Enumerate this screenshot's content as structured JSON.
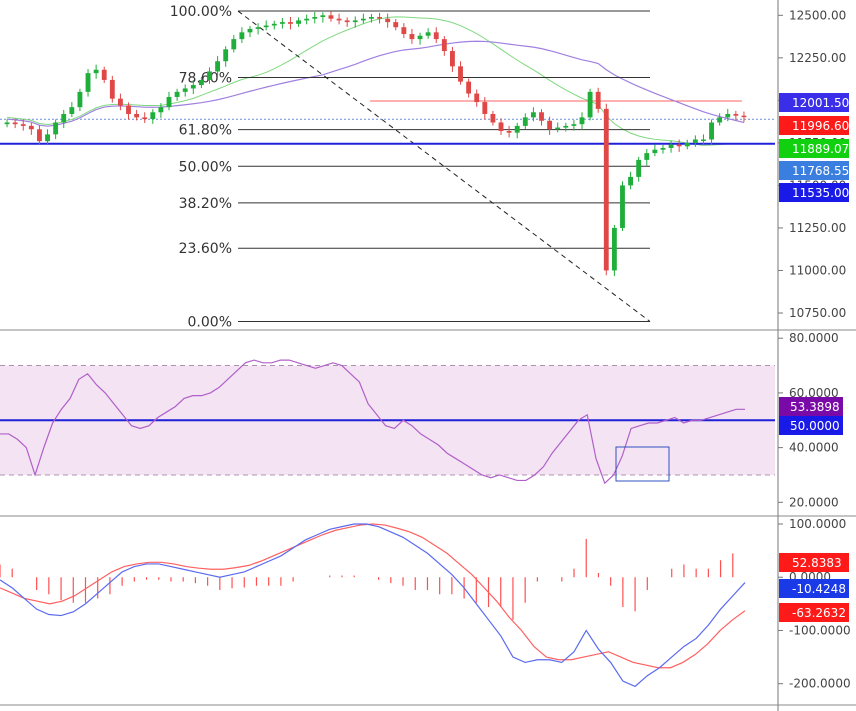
{
  "chart_data": [
    {
      "type": "candlestick",
      "price_axis": {
        "range": [
          10650,
          12590
        ],
        "tick_labels": [
          "12500.00",
          "12250.00",
          "12000.00",
          "11750.00",
          "11500.00",
          "11250.00",
          "11000.00",
          "10750.00"
        ],
        "tick_values": [
          12500,
          12250,
          12000,
          11750,
          11500,
          11250,
          11000,
          10750
        ]
      },
      "fibonacci": {
        "high": 12525,
        "low": 10700,
        "levels": [
          {
            "label": "100.00%",
            "ratio": 1.0
          },
          {
            "label": "78.60%",
            "ratio": 0.786
          },
          {
            "label": "61.80%",
            "ratio": 0.618
          },
          {
            "label": "50.00%",
            "ratio": 0.5
          },
          {
            "label": "38.20%",
            "ratio": 0.382
          },
          {
            "label": "23.60%",
            "ratio": 0.236
          },
          {
            "label": "0.00%",
            "ratio": 0.0
          }
        ]
      },
      "horizontal_line": 11745,
      "price_tags": [
        {
          "label": "12001.50",
          "value": 12001.5,
          "color": "#3a2ee8"
        },
        {
          "label": "11996.60",
          "value": 11996.6,
          "color": "#ff1a1a"
        },
        {
          "label": "11889.07",
          "value": 11889.07,
          "color": "#10d010"
        },
        {
          "label": "11768.55",
          "value": 11768.55,
          "color": "#3a7fe0"
        },
        {
          "label": "11535.00",
          "value": 11535.0,
          "color": "#1a1ae8"
        }
      ],
      "close": [
        11870,
        11860,
        11850,
        11830,
        11760,
        11800,
        11870,
        11920,
        11960,
        12050,
        12160,
        12180,
        12120,
        12010,
        11970,
        11920,
        11900,
        11890,
        11930,
        11960,
        12020,
        12050,
        12070,
        12090,
        12120,
        12170,
        12230,
        12300,
        12360,
        12400,
        12420,
        12430,
        12440,
        12450,
        12460,
        12450,
        12470,
        12480,
        12490,
        12500,
        12480,
        12470,
        12460,
        12470,
        12480,
        12490,
        12480,
        12460,
        12430,
        12390,
        12360,
        12380,
        12400,
        12360,
        12290,
        12200,
        12110,
        12040,
        11990,
        11920,
        11870,
        11820,
        11810,
        11850,
        11900,
        11930,
        11880,
        11830,
        11840,
        11850,
        11860,
        11900,
        12050,
        11950,
        11000,
        11250,
        11500,
        11550,
        11650,
        11690,
        11710,
        11720,
        11740,
        11730,
        11750,
        11770,
        11770,
        11870,
        11900,
        11920,
        11910,
        11905
      ]
    },
    {
      "type": "line",
      "name": "RSI",
      "axis": {
        "range": [
          15,
          83
        ],
        "tick_labels": [
          "80.0000",
          "60.0000",
          "40.0000",
          "20.0000"
        ],
        "tick_values": [
          80,
          60,
          40,
          20
        ]
      },
      "band": [
        30,
        70
      ],
      "midline": 50,
      "value_tags": [
        {
          "label": "53.3898",
          "value": 53.3898,
          "color": "#7a0aa8"
        },
        {
          "label": "50.0000",
          "value": 50.0,
          "color": "#1a1ae8"
        }
      ],
      "values": [
        45,
        45,
        43,
        40,
        30,
        40,
        49,
        54,
        58,
        65,
        67,
        63,
        60,
        56,
        52,
        48,
        47,
        48,
        51,
        53,
        55,
        58,
        59,
        59,
        60,
        62,
        65,
        68,
        71,
        72,
        71,
        71,
        72,
        72,
        71,
        70,
        69,
        70,
        71,
        70,
        67,
        64,
        56,
        52,
        48,
        47,
        50,
        48,
        45,
        43,
        41,
        38,
        36,
        34,
        32,
        30,
        29,
        30,
        29,
        28,
        28,
        30,
        33,
        38,
        42,
        46,
        50,
        52,
        36,
        27,
        30,
        37,
        47,
        48,
        49,
        49,
        50,
        51,
        49,
        50,
        50,
        51,
        52,
        53,
        54,
        54
      ]
    },
    {
      "type": "line",
      "name": "MACD",
      "axis": {
        "range": [
          -240,
          115
        ],
        "tick_labels": [
          "100.0000",
          "0.0000",
          "-100.0000",
          "-200.0000"
        ],
        "tick_values": [
          100,
          0,
          -100,
          -200
        ]
      },
      "value_tags": [
        {
          "label": "52.8383",
          "value": 52.8383,
          "color": "#ff1a1a"
        },
        {
          "label": "-10.4248",
          "value": -10.4248,
          "color": "#1a3ae8"
        },
        {
          "label": "-63.2632",
          "value": -63.2632,
          "color": "#ff1a1a"
        }
      ],
      "macd": [
        -5,
        -20,
        -40,
        -60,
        -70,
        -72,
        -65,
        -50,
        -30,
        -10,
        10,
        20,
        25,
        25,
        20,
        15,
        10,
        5,
        0,
        5,
        10,
        20,
        30,
        40,
        55,
        70,
        80,
        90,
        95,
        100,
        100,
        95,
        85,
        75,
        60,
        45,
        25,
        5,
        -20,
        -50,
        -80,
        -110,
        -150,
        -160,
        -155,
        -155,
        -160,
        -140,
        -100,
        -135,
        -160,
        -195,
        -205,
        -185,
        -170,
        -150,
        -130,
        -115,
        -90,
        -60,
        -35,
        -10
      ],
      "signal": [
        -20,
        -30,
        -40,
        -45,
        -50,
        -45,
        -35,
        -20,
        -5,
        10,
        20,
        25,
        28,
        28,
        25,
        20,
        17,
        15,
        15,
        18,
        22,
        30,
        40,
        50,
        60,
        70,
        80,
        88,
        93,
        98,
        100,
        98,
        92,
        85,
        75,
        60,
        45,
        25,
        5,
        -20,
        -45,
        -75,
        -100,
        -130,
        -150,
        -155,
        -155,
        -150,
        -145,
        -140,
        -150,
        -160,
        -165,
        -170,
        -170,
        -160,
        -145,
        -125,
        -100,
        -80,
        -63
      ]
    }
  ]
}
